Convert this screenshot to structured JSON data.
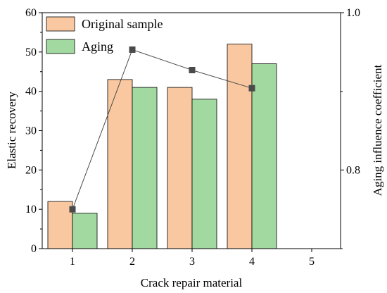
{
  "chart_data": {
    "type": "bar",
    "categories": [
      "1",
      "2",
      "3",
      "4",
      "5"
    ],
    "series": [
      {
        "name": "Original sample",
        "axis": "left",
        "color": "#f9c8a0",
        "values": [
          12,
          43,
          41,
          52,
          null
        ]
      },
      {
        "name": "Aging",
        "axis": "left",
        "color": "#a2d9a1",
        "values": [
          9,
          41,
          38,
          47,
          null
        ]
      }
    ],
    "line_series": {
      "axis": "right",
      "color": "#4a4a4a",
      "marker": "square",
      "values": [
        0.75,
        0.953,
        0.927,
        0.904,
        null
      ]
    },
    "xlabel": "Crack repair material",
    "ylabel": "Elastic recovery",
    "y2label": "Aging influence coefficient",
    "ylim": [
      0,
      60
    ],
    "yticks": [
      0,
      10,
      20,
      30,
      40,
      50,
      60
    ],
    "y2lim": [
      0.7,
      1.0
    ],
    "y2ticks": [
      "0.8",
      "1.0"
    ],
    "y2tick_values": [
      0.8,
      1.0
    ],
    "legend_position": "top-left",
    "grid": false
  }
}
